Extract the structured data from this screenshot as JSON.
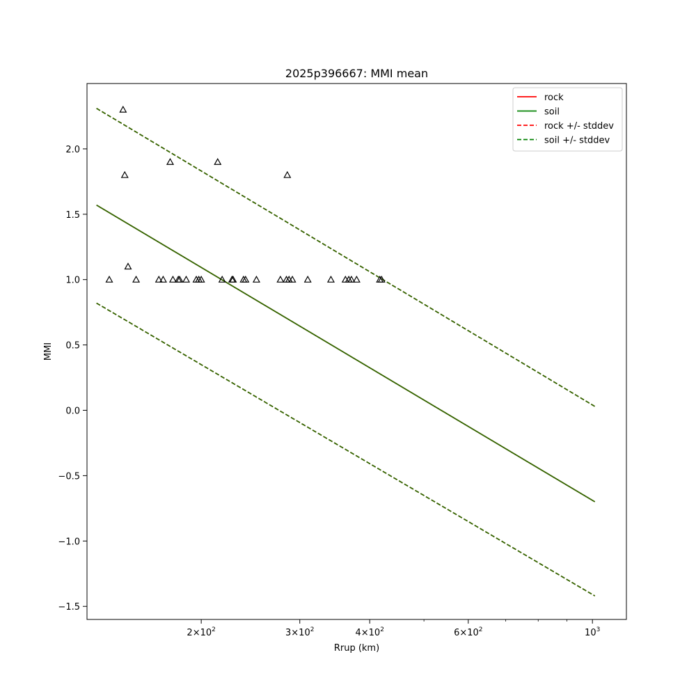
{
  "chart_data": {
    "type": "scatter",
    "title": "2025p396667: MMI mean",
    "xlabel": "Rrup (km)",
    "ylabel": "MMI",
    "xscale": "log",
    "xlim": [
      125,
      1150
    ],
    "ylim": [
      -1.6,
      2.5
    ],
    "x_ticks": [
      {
        "value": 200,
        "mantissa": "2",
        "exp": "2"
      },
      {
        "value": 300,
        "mantissa": "3",
        "exp": "2"
      },
      {
        "value": 400,
        "mantissa": "4",
        "exp": "2"
      },
      {
        "value": 600,
        "mantissa": "6",
        "exp": "2"
      },
      {
        "value": 1000,
        "mantissa": "",
        "exp": "3"
      }
    ],
    "x_minor_ticks": [
      500,
      700,
      800,
      900
    ],
    "y_ticks": [
      {
        "value": -1.5,
        "label": "−1.5"
      },
      {
        "value": -1.0,
        "label": "−1.0"
      },
      {
        "value": -0.5,
        "label": "−0.5"
      },
      {
        "value": 0.0,
        "label": "0.0"
      },
      {
        "value": 0.5,
        "label": "0.5"
      },
      {
        "value": 1.0,
        "label": "1.0"
      },
      {
        "value": 1.5,
        "label": "1.5"
      },
      {
        "value": 2.0,
        "label": "2.0"
      }
    ],
    "grid": false,
    "legend_position": "top-right",
    "series": [
      {
        "name": "rock",
        "style": "solid",
        "color": "#ff0000",
        "x": [
          130,
          1010
        ],
        "y": [
          1.57,
          -0.7
        ]
      },
      {
        "name": "soil",
        "style": "solid",
        "color": "#008000",
        "x": [
          130,
          1010
        ],
        "y": [
          1.57,
          -0.7
        ]
      },
      {
        "name": "rock +/- stddev",
        "style": "dashed",
        "color": "#ff0000",
        "x": [
          130,
          1010
        ],
        "y": [
          2.31,
          0.03
        ],
        "x2": [
          130,
          1010
        ],
        "y2": [
          0.82,
          -1.42
        ]
      },
      {
        "name": "soil +/- stddev",
        "style": "dashed",
        "color": "#008000",
        "x": [
          130,
          1010
        ],
        "y": [
          2.31,
          0.03
        ],
        "x2": [
          130,
          1010
        ],
        "y2": [
          0.82,
          -1.42
        ]
      }
    ],
    "overlay_line_color": "#336600",
    "observations": {
      "marker": "triangle",
      "color": "#000000",
      "points": [
        {
          "x": 145,
          "y": 2.3
        },
        {
          "x": 146,
          "y": 1.8
        },
        {
          "x": 176,
          "y": 1.9
        },
        {
          "x": 214,
          "y": 1.9
        },
        {
          "x": 285,
          "y": 1.8
        },
        {
          "x": 148,
          "y": 1.1
        },
        {
          "x": 137,
          "y": 1.0
        },
        {
          "x": 153,
          "y": 1.0
        },
        {
          "x": 168,
          "y": 1.0
        },
        {
          "x": 171,
          "y": 1.0
        },
        {
          "x": 178,
          "y": 1.0
        },
        {
          "x": 182,
          "y": 1.0
        },
        {
          "x": 183,
          "y": 1.0
        },
        {
          "x": 188,
          "y": 1.0
        },
        {
          "x": 196,
          "y": 1.0
        },
        {
          "x": 198,
          "y": 1.0
        },
        {
          "x": 200,
          "y": 1.0
        },
        {
          "x": 218,
          "y": 1.0
        },
        {
          "x": 227,
          "y": 1.0
        },
        {
          "x": 228,
          "y": 1.0
        },
        {
          "x": 238,
          "y": 1.0
        },
        {
          "x": 240,
          "y": 1.0
        },
        {
          "x": 251,
          "y": 1.0
        },
        {
          "x": 277,
          "y": 1.0
        },
        {
          "x": 284,
          "y": 1.0
        },
        {
          "x": 287,
          "y": 1.0
        },
        {
          "x": 291,
          "y": 1.0
        },
        {
          "x": 310,
          "y": 1.0
        },
        {
          "x": 341,
          "y": 1.0
        },
        {
          "x": 362,
          "y": 1.0
        },
        {
          "x": 367,
          "y": 1.0
        },
        {
          "x": 371,
          "y": 1.0
        },
        {
          "x": 379,
          "y": 1.0
        },
        {
          "x": 417,
          "y": 1.0
        },
        {
          "x": 420,
          "y": 1.0
        }
      ]
    }
  }
}
